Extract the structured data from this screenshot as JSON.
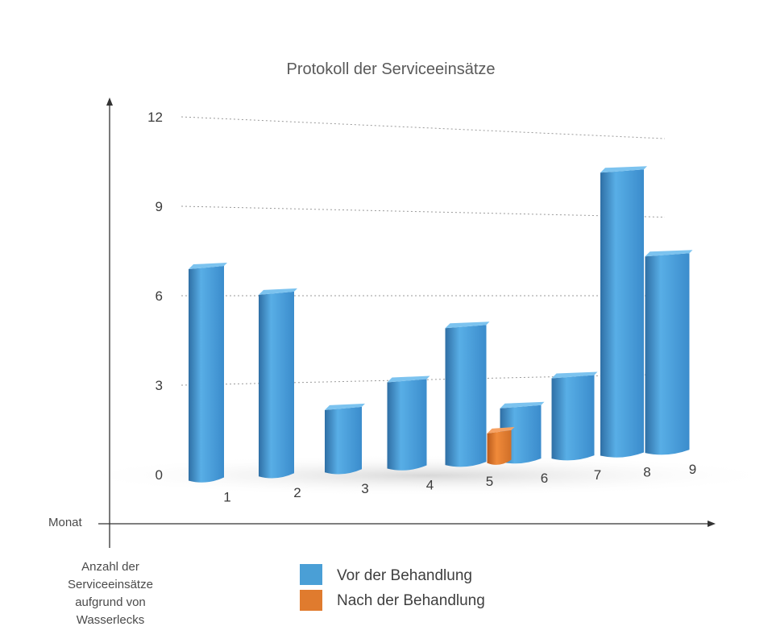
{
  "chart_data": {
    "type": "bar",
    "title": "Protokoll der Serviceeinsätze",
    "xlabel": "Monat",
    "ylabel": [
      "Anzahl der",
      "Serviceeinsätze",
      "aufgrund von",
      "Wasserlecks"
    ],
    "yticks": [
      "0",
      "3",
      "6",
      "9",
      "12"
    ],
    "ylim": [
      0,
      12
    ],
    "grid": true,
    "legend_position": "bottom-center",
    "categories": [
      "1",
      "2",
      "3",
      "4",
      "5",
      "6",
      "7",
      "8",
      "9"
    ],
    "series": [
      {
        "name": "Vor der Behandlung",
        "color": "#4a9fd6",
        "values": [
          7.2,
          6.2,
          2.2,
          3.0,
          4.7,
          1.9,
          2.8,
          9.6,
          6.7
        ]
      },
      {
        "name": "Nach der Behandlung",
        "color": "#e07b2e",
        "values": [
          null,
          null,
          null,
          null,
          1.1,
          null,
          null,
          null,
          null
        ]
      }
    ]
  }
}
